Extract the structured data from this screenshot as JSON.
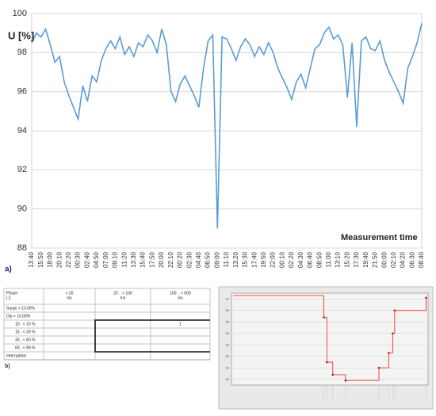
{
  "chart_data": [
    {
      "type": "line",
      "ylabel": "U [%]",
      "xlabel": "Measurement time",
      "panel_label": "a)",
      "categories": [
        "13:40",
        null,
        "15:50",
        null,
        "18:00",
        null,
        "20:10",
        null,
        "22:20",
        null,
        "00:30",
        null,
        "02:40",
        null,
        "04:50",
        null,
        "07:00",
        null,
        "09:10",
        null,
        "11:20",
        null,
        "13:30",
        null,
        "15:40",
        null,
        "17:50",
        null,
        "20:00",
        null,
        "22:10",
        null,
        "00:20",
        null,
        "02:30",
        null,
        "04:40",
        null,
        "06:50",
        null,
        "09:00",
        null,
        "11:10",
        null,
        "13:20",
        null,
        "15:30",
        null,
        "17:40",
        null,
        "19:50",
        null,
        "22:00",
        null,
        "00:10",
        null,
        "02:20",
        null,
        "04:30",
        null,
        "06:40",
        null,
        "08:50",
        null,
        "11:00",
        null,
        "13:10",
        null,
        "15:20",
        null,
        "17:30",
        null,
        "19:40",
        null,
        "21:50",
        null,
        "00:00",
        null,
        "02:10",
        null,
        "04:20",
        null,
        "06:30",
        null,
        "08:40"
      ],
      "series": [
        {
          "color": "#5b9bd5",
          "values": [
            98.5,
            99,
            98.8,
            99.2,
            98.4,
            97.5,
            97.8,
            96.5,
            95.8,
            95.2,
            94.6,
            96.3,
            95.5,
            96.8,
            96.5,
            97.6,
            98.2,
            98.6,
            98.2,
            98.8,
            97.9,
            98.3,
            97.8,
            98.5,
            98.3,
            98.9,
            98.6,
            98,
            99.2,
            98.4,
            96,
            95.5,
            96.4,
            96.8,
            96.3,
            95.8,
            95.2,
            97.2,
            98.6,
            98.9,
            89,
            98.8,
            98.7,
            98.2,
            97.6,
            98.3,
            98.7,
            98.4,
            97.8,
            98.3,
            97.9,
            98.5,
            98,
            97.2,
            96.7,
            96.2,
            95.6,
            96.5,
            96.9,
            96.2,
            97.2,
            98.2,
            98.4,
            99,
            99.3,
            98.7,
            98.9,
            98.4,
            95.7,
            98.5,
            94.2,
            98.6,
            98.8,
            98.2,
            98.1,
            98.6,
            97.6,
            97,
            96.5,
            96,
            95.4,
            97.2,
            97.8,
            98.5,
            99.5
          ]
        }
      ],
      "ylim": [
        88,
        100
      ],
      "yticks": [
        88,
        90,
        92,
        94,
        96,
        98,
        100
      ],
      "grid": true
    },
    {
      "type": "step",
      "x": [
        1,
        47,
        48.5,
        51.5,
        58,
        75,
        80,
        82,
        83,
        99
      ],
      "series": [
        {
          "color": "#e8392a",
          "values": [
            97.3,
            95.4,
            91.5,
            90.4,
            89.9,
            91,
            92.3,
            94,
            96,
            97.1
          ]
        }
      ],
      "xlim": [
        0,
        100
      ],
      "ylim": [
        89.5,
        97.5
      ],
      "yticks": [
        90,
        91,
        92,
        93,
        94,
        95,
        96,
        97
      ],
      "grid": true
    }
  ],
  "table": {
    "panel_label": "b)",
    "header": [
      [
        "Phase",
        "L2"
      ],
      [
        "< 20",
        "ms"
      ],
      [
        "20 .. < 100",
        "ms"
      ],
      [
        "100 .. < 500",
        "ms"
      ]
    ],
    "rows": [
      [
        "Surge > 10.00%",
        null,
        null,
        null
      ],
      [
        "Dip > 10.00%",
        null,
        null,
        null
      ],
      [
        "10.. < 15 %",
        null,
        null,
        "1"
      ],
      [
        "15.. < 30 %",
        null,
        null,
        null
      ],
      [
        "30.. < 60 %",
        null,
        null,
        null
      ],
      [
        "60.. < 99 %",
        null,
        null,
        null
      ],
      [
        "Interruption",
        null,
        null,
        null
      ]
    ]
  }
}
